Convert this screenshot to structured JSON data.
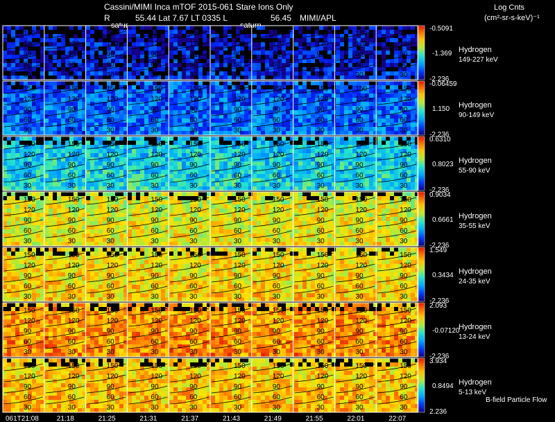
{
  "header": {
    "title": "Cassini/MIMI Inca mTOF  2015-061    Stare    Ions Only",
    "r_label": "R",
    "orbit_values": "55.44 Lat 7.67 LT 0335 L",
    "l_value": "56.45",
    "credit": "MIMI/APL",
    "saturn_left": "satur",
    "saturn_right": "saturn",
    "units_title": "Log Cnts",
    "units": "(cm²-sr-s-keV)⁻¹",
    "flow_note": "B-field Particle Flow"
  },
  "chart_data": {
    "type": "heatmap",
    "time_labels": [
      "061T21:08",
      "21:18",
      "21:25",
      "21:31",
      "21:37",
      "21:43",
      "21:49",
      "21:55",
      "22:01",
      "22:07"
    ],
    "contour_labels": [
      "150",
      "120",
      "90",
      "60",
      "30"
    ],
    "rows": [
      {
        "species": "Hydrogen",
        "energy": "149-227 keV",
        "max": "-0.5091",
        "mid": "-1.369",
        "min": "-2.236",
        "level": 0.1
      },
      {
        "species": "Hydrogen",
        "energy": "90-149 keV",
        "max": "-0.06459",
        "mid": "1.150",
        "min": "-2.236",
        "level": 0.22
      },
      {
        "species": "Hydrogen",
        "energy": "55-90 keV",
        "max": "0.6310",
        "mid": "0.8023",
        "min": "-2.236",
        "level": 0.4
      },
      {
        "species": "Hydrogen",
        "energy": "35-55 keV",
        "max": "0.9034",
        "mid": "0.6661",
        "min": "-2.236",
        "level": 0.68
      },
      {
        "species": "Hydrogen",
        "energy": "24-35 keV",
        "max": "1.549",
        "mid": "0.3434",
        "min": "-2.236",
        "level": 0.72
      },
      {
        "species": "Hydrogen",
        "energy": "13-24 keV",
        "max": "2.093",
        "mid": "-0.07120",
        "min": "-2.236",
        "level": 0.83
      },
      {
        "species": "Hydrogen",
        "energy": "5-13 keV",
        "max": "3.934",
        "mid": "0.8494",
        "min": "2.236",
        "level": 0.76
      }
    ]
  }
}
